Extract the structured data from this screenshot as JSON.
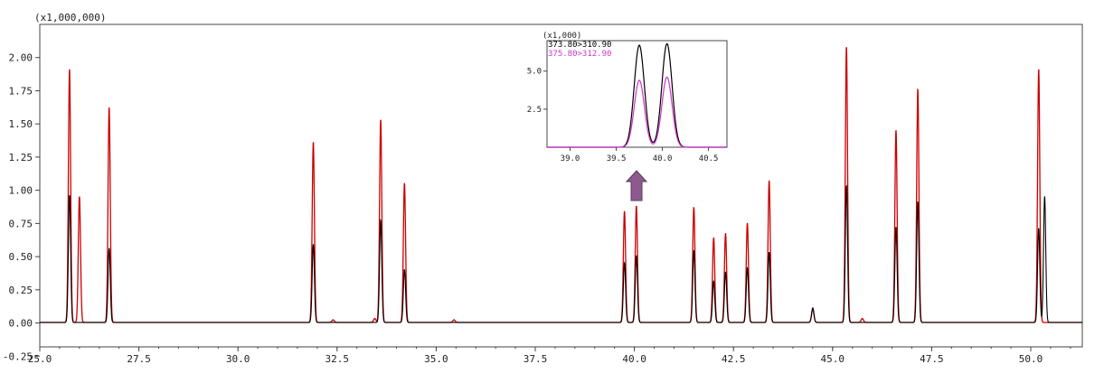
{
  "chart_data": {
    "type": "line",
    "title": "",
    "xlabel": "",
    "ylabel": "",
    "y_multiplier_label": "(x1,000,000)",
    "xlim": [
      25.0,
      51.3
    ],
    "ylim": [
      -0.18,
      2.25
    ],
    "x_ticks": [
      "25.0",
      "27.5",
      "30.0",
      "32.5",
      "35.0",
      "37.5",
      "40.0",
      "42.5",
      "45.0",
      "47.5",
      "50.0"
    ],
    "y_ticks": [
      "2.00",
      "1.75",
      "1.50",
      "1.25",
      "1.00",
      "0.75",
      "0.50",
      "0.25",
      "0.00",
      "-0.25"
    ],
    "grid": false,
    "series": [
      {
        "color": "#cc0000",
        "peaks": [
          [
            25.75,
            1.91
          ],
          [
            26.0,
            0.95
          ],
          [
            26.75,
            1.62
          ],
          [
            31.9,
            1.36
          ],
          [
            33.6,
            1.53
          ],
          [
            34.2,
            1.05
          ],
          [
            39.75,
            0.84
          ],
          [
            40.05,
            0.88
          ],
          [
            41.5,
            0.87
          ],
          [
            42.0,
            0.64
          ],
          [
            42.3,
            0.67
          ],
          [
            42.85,
            0.75
          ],
          [
            43.4,
            1.07
          ],
          [
            45.35,
            2.08
          ],
          [
            46.6,
            1.45
          ],
          [
            47.15,
            1.76
          ],
          [
            50.2,
            1.91
          ]
        ],
        "minor_peaks": [
          [
            32.4,
            0.02
          ],
          [
            33.45,
            0.03
          ],
          [
            35.45,
            0.02
          ],
          [
            44.5,
            0.1
          ],
          [
            45.75,
            0.03
          ]
        ]
      },
      {
        "color": "#000000",
        "peaks": [
          [
            25.75,
            0.96
          ],
          [
            26.0,
            0.0
          ],
          [
            26.75,
            0.56
          ],
          [
            31.9,
            0.59
          ],
          [
            33.6,
            0.77
          ],
          [
            34.2,
            0.4
          ],
          [
            39.75,
            0.45
          ],
          [
            40.05,
            0.5
          ],
          [
            41.5,
            0.54
          ],
          [
            42.0,
            0.31
          ],
          [
            42.3,
            0.38
          ],
          [
            42.85,
            0.41
          ],
          [
            43.4,
            0.53
          ],
          [
            45.35,
            1.03
          ],
          [
            46.6,
            0.72
          ],
          [
            47.15,
            0.91
          ],
          [
            50.2,
            0.71
          ],
          [
            50.35,
            0.95
          ]
        ],
        "minor_peaks": [
          [
            44.5,
            0.11
          ]
        ]
      }
    ],
    "inset": {
      "y_multiplier_label": "(x1,000)",
      "x_ticks": [
        "39.0",
        "39.5",
        "40.0",
        "40.5"
      ],
      "y_ticks": [
        "5.0",
        "2.5"
      ],
      "xlim": [
        38.75,
        40.7
      ],
      "ylim": [
        0,
        7.0
      ],
      "series": [
        {
          "name": "373.80>310.90",
          "color": "#000000",
          "peaks": [
            [
              39.75,
              6.7
            ],
            [
              40.05,
              6.8
            ]
          ]
        },
        {
          "name": "375.80>312.90",
          "color": "#cc33cc",
          "peaks": [
            [
              39.75,
              4.4
            ],
            [
              40.05,
              4.6
            ]
          ]
        }
      ]
    },
    "arrow_color": "#8e5a8e"
  }
}
